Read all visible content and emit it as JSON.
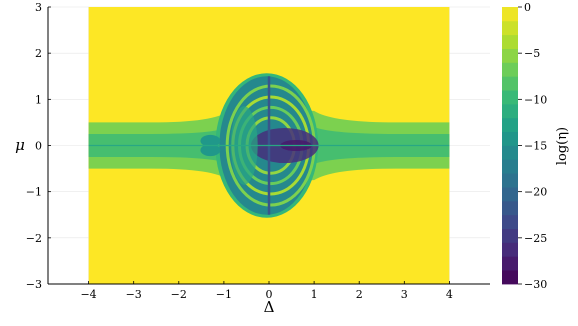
{
  "chart_data": {
    "type": "heatmap",
    "title": "",
    "xlabel": "Δ",
    "ylabel": "μ",
    "xlim": [
      -4.9,
      4.9
    ],
    "ylim": [
      -3,
      3
    ],
    "heat_extent": {
      "x": [
        -4,
        4
      ],
      "y": [
        -3,
        3
      ]
    },
    "xticks": [
      -4,
      -3,
      -2,
      -1,
      0,
      1,
      2,
      3,
      4
    ],
    "yticks": [
      -3,
      -2,
      -1,
      0,
      1,
      2,
      3
    ],
    "xtick_labels": [
      "−4",
      "−3",
      "−2",
      "−1",
      "0",
      "1",
      "2",
      "3",
      "4"
    ],
    "ytick_labels": [
      "−3",
      "−2",
      "−1",
      "0",
      "1",
      "2",
      "3"
    ],
    "grid": true,
    "colormap": "viridis",
    "colorbar": {
      "label": "log(η)",
      "range": [
        -30,
        0
      ],
      "ticks": [
        0,
        -5,
        -10,
        -15,
        -20,
        -25,
        -30
      ],
      "tick_labels": [
        "0",
        "−5",
        "−10",
        "−15",
        "−20",
        "−25",
        "−30"
      ],
      "levels": 20
    },
    "regions": [
      {
        "name": "background",
        "value": 0
      },
      {
        "name": "horizontal band (|μ|≈0.5)",
        "value": -6,
        "x": [
          -4,
          4
        ],
        "y": [
          -0.5,
          0.5
        ]
      },
      {
        "name": "inner band (|μ|≈0.25)",
        "value": -9,
        "x": [
          -4,
          4
        ],
        "y": [
          -0.25,
          0.25
        ]
      },
      {
        "name": "central lobe",
        "value": -14,
        "center": [
          -0.05,
          0
        ],
        "half_width": 1.05,
        "half_height": 1.5
      },
      {
        "name": "outer arcs",
        "value": -16
      },
      {
        "name": "deep interior",
        "value": -24,
        "center": [
          0.35,
          0
        ]
      },
      {
        "name": "side bubbles",
        "value": -14,
        "centers": [
          [
            -1.3,
            0.1
          ],
          [
            -1.3,
            -0.1
          ]
        ]
      },
      {
        "name": "vertical line",
        "value": -22,
        "x": 0,
        "y": [
          -1.5,
          1.5
        ]
      }
    ]
  }
}
